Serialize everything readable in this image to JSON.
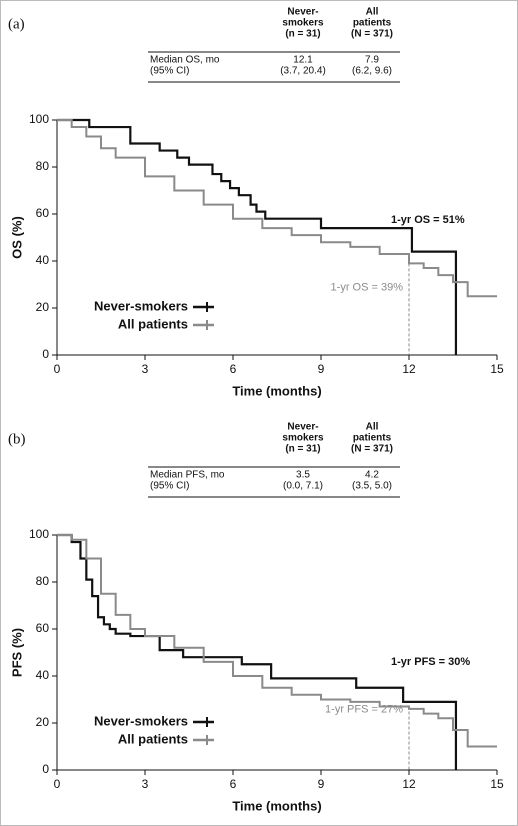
{
  "chart_data": [
    {
      "type": "line",
      "panel_label": "(a)",
      "table": {
        "columns": [
          [
            "Never-",
            "smokers",
            "(n = 31)"
          ],
          [
            "All",
            "patients",
            "(N = 371)"
          ]
        ],
        "rows": [
          {
            "label": [
              "Median OS, mo",
              "(95% CI)"
            ],
            "cells": [
              [
                "12.1",
                "(3.7, 20.4)"
              ],
              [
                "7.9",
                "(6.2, 9.6)"
              ]
            ]
          }
        ]
      },
      "xlabel": "Time (months)",
      "ylabel": "OS (%)",
      "xlim": [
        0,
        15
      ],
      "ylim": [
        0,
        100
      ],
      "xticks": [
        0,
        3,
        6,
        9,
        12,
        15
      ],
      "yticks": [
        0,
        20,
        40,
        60,
        80,
        100
      ],
      "series": [
        {
          "name": "Never-smokers",
          "color": "#111111",
          "x": [
            0,
            1.1,
            2.5,
            3.5,
            4.1,
            4.5,
            5.3,
            5.6,
            5.9,
            6.2,
            6.6,
            6.8,
            7.1,
            9.0,
            12.1,
            13.6
          ],
          "values": [
            100,
            97,
            90,
            87,
            84,
            81,
            77,
            74,
            71,
            68,
            64,
            61,
            58,
            54,
            44,
            0
          ]
        },
        {
          "name": "All patients",
          "color": "#8a8a8a",
          "x": [
            0,
            0.5,
            1,
            1.5,
            2,
            3,
            4,
            5,
            6,
            7,
            8,
            9,
            10,
            11,
            12,
            12.5,
            13,
            13.5,
            14,
            15
          ],
          "values": [
            100,
            97,
            93,
            88,
            84,
            76,
            70,
            64,
            58,
            54,
            51,
            48,
            46,
            43,
            39,
            37,
            34,
            31,
            25,
            25
          ]
        }
      ],
      "annotations": [
        "1-yr OS = 51%",
        "1-yr OS = 39%"
      ],
      "reference": {
        "x": 12,
        "y": 39
      },
      "legend": "lower left"
    },
    {
      "type": "line",
      "panel_label": "(b)",
      "table": {
        "columns": [
          [
            "Never-",
            "smokers",
            "(n = 31)"
          ],
          [
            "All",
            "patients",
            "(N = 371)"
          ]
        ],
        "rows": [
          {
            "label": [
              "Median PFS, mo",
              "(95% CI)"
            ],
            "cells": [
              [
                "3.5",
                "(0.0, 7.1)"
              ],
              [
                "4.2",
                "(3.5, 5.0)"
              ]
            ]
          }
        ]
      },
      "xlabel": "Time (months)",
      "ylabel": "PFS (%)",
      "xlim": [
        0,
        15
      ],
      "ylim": [
        0,
        100
      ],
      "xticks": [
        0,
        3,
        6,
        9,
        12,
        15
      ],
      "yticks": [
        0,
        20,
        40,
        60,
        80,
        100
      ],
      "series": [
        {
          "name": "Never-smokers",
          "color": "#111111",
          "x": [
            0,
            0.5,
            0.8,
            1.0,
            1.2,
            1.4,
            1.6,
            1.8,
            2.0,
            2.5,
            3.5,
            4.3,
            6.3,
            7.3,
            10.2,
            11.8,
            13.6
          ],
          "values": [
            100,
            97,
            90,
            81,
            74,
            65,
            62,
            60,
            58,
            57,
            51,
            48,
            45,
            39,
            35,
            29,
            0
          ]
        },
        {
          "name": "All patients",
          "color": "#8a8a8a",
          "x": [
            0,
            0.5,
            1,
            1.5,
            2,
            2.5,
            3,
            4,
            5,
            6,
            7,
            8,
            9,
            10,
            11,
            12,
            12.5,
            13,
            13.5,
            14,
            15
          ],
          "values": [
            100,
            98,
            90,
            75,
            66,
            60,
            57,
            52,
            46,
            40,
            35,
            32,
            30,
            29,
            27,
            26,
            24,
            22,
            17,
            10,
            10
          ]
        }
      ],
      "annotations": [
        "1-yr PFS = 30%",
        "1-yr PFS = 27%"
      ],
      "reference": {
        "x": 12,
        "y": 27
      },
      "legend": "lower left"
    }
  ]
}
